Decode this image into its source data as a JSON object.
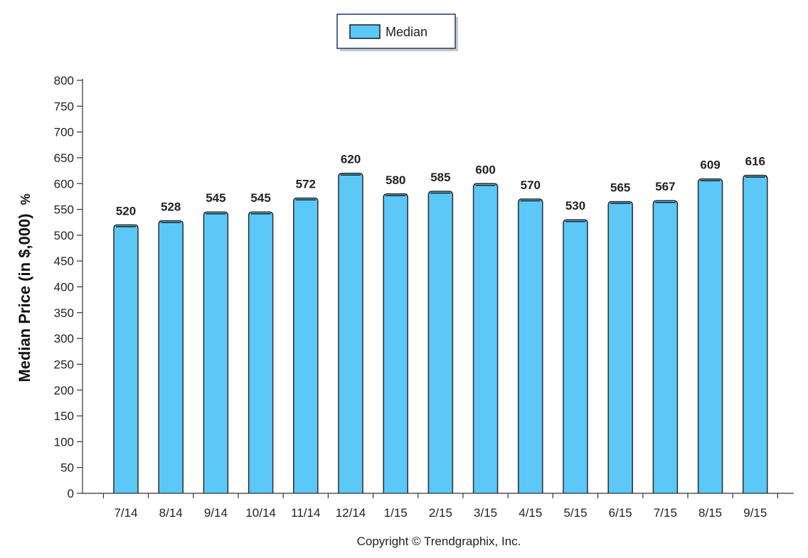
{
  "chart_data": {
    "type": "bar",
    "categories": [
      "7/14",
      "8/14",
      "9/14",
      "10/14",
      "11/14",
      "12/14",
      "1/15",
      "2/15",
      "3/15",
      "4/15",
      "5/15",
      "6/15",
      "7/15",
      "8/15",
      "9/15"
    ],
    "series": [
      {
        "name": "Median",
        "values": [
          520,
          528,
          545,
          545,
          572,
          620,
          580,
          585,
          600,
          570,
          530,
          565,
          567,
          609,
          616
        ],
        "color": "#5bc8f8"
      }
    ],
    "ylabel": "Median Price (in $,000)",
    "ylabel_suffix": "%",
    "xlabel": "",
    "ylim": [
      0,
      800
    ],
    "yticks": [
      0,
      50,
      100,
      150,
      200,
      250,
      300,
      350,
      400,
      450,
      500,
      550,
      600,
      650,
      700,
      750,
      800
    ],
    "grid": false,
    "legend_position": "top-center",
    "data_labels": true
  },
  "footer": {
    "copyright": "Copyright © Trendgraphix, Inc."
  },
  "colors": {
    "bar_fill": "#5bc8f8",
    "bar_stroke": "#333333",
    "axis": "#333333",
    "legend_border": "#1f3a6e"
  }
}
